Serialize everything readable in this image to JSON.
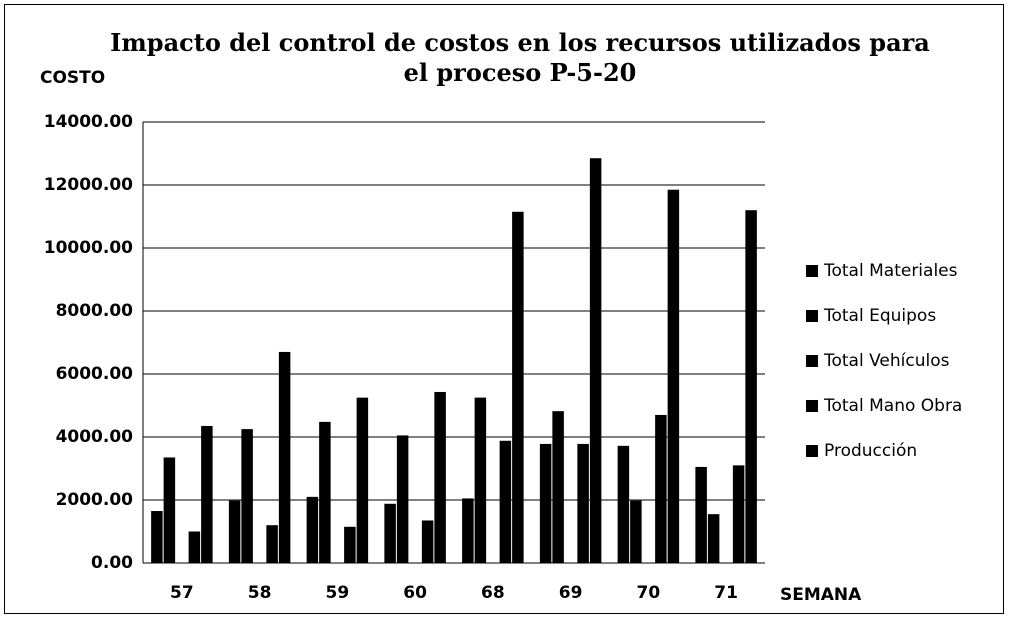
{
  "chart_data": {
    "type": "bar",
    "title": "Impacto del control de costos en los recursos utilizados para el proceso P-5-20",
    "y_label": "COSTO",
    "x_label": "SEMANA",
    "categories": [
      "57",
      "58",
      "59",
      "60",
      "68",
      "69",
      "70",
      "71"
    ],
    "series": [
      {
        "name": "Total Materiales",
        "color": "#000000",
        "values": [
          1650,
          1980,
          2100,
          1880,
          2050,
          3780,
          3720,
          3050
        ]
      },
      {
        "name": "Total Equipos",
        "color": "#000000",
        "values": [
          3350,
          4250,
          4480,
          4050,
          5250,
          4820,
          1980,
          1550
        ]
      },
      {
        "name": "Total Vehículos",
        "color": "#000000",
        "values": [
          0,
          0,
          0,
          0,
          0,
          0,
          0,
          0
        ]
      },
      {
        "name": "Total Mano Obra",
        "color": "#000000",
        "values": [
          1000,
          1200,
          1150,
          1350,
          3880,
          3780,
          4700,
          3100
        ]
      },
      {
        "name": "Producción",
        "color": "#000000",
        "values": [
          4350,
          6700,
          5250,
          5430,
          11150,
          12850,
          11850,
          11200
        ]
      }
    ],
    "ylim": [
      0,
      14000
    ],
    "yticks": [
      {
        "value": 0,
        "label": "0.00"
      },
      {
        "value": 2000,
        "label": "2000.00"
      },
      {
        "value": 4000,
        "label": "4000.00"
      },
      {
        "value": 6000,
        "label": "6000.00"
      },
      {
        "value": 8000,
        "label": "8000.00"
      },
      {
        "value": 10000,
        "label": "10000.00"
      },
      {
        "value": 12000,
        "label": "12000.00"
      },
      {
        "value": 14000,
        "label": "14000.00"
      }
    ],
    "grid": true,
    "legend": "right"
  }
}
